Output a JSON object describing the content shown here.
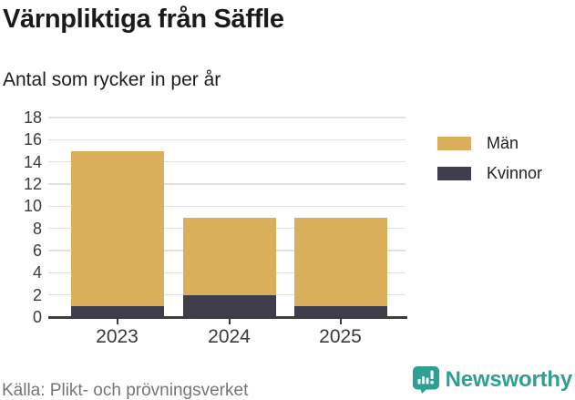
{
  "header": {
    "title": "Värnpliktiga från Säffle",
    "subtitle": "Antal som rycker in per år"
  },
  "legend": {
    "items": [
      {
        "label": "Män",
        "color": "#D9AF5B"
      },
      {
        "label": "Kvinnor",
        "color": "#403E4C"
      }
    ]
  },
  "chart_data": {
    "type": "bar",
    "stacked": true,
    "categories": [
      "2023",
      "2024",
      "2025"
    ],
    "series": [
      {
        "name": "Män",
        "color": "#D9AF5B",
        "values": [
          14,
          7,
          8
        ]
      },
      {
        "name": "Kvinnor",
        "color": "#403E4C",
        "values": [
          1,
          2,
          1
        ]
      }
    ],
    "stack_order_bottom_to_top": [
      "Kvinnor",
      "Män"
    ],
    "totals": [
      15,
      9,
      9
    ],
    "title": "Värnpliktiga från Säffle",
    "subtitle": "Antal som rycker in per år",
    "xlabel": "",
    "ylabel": "",
    "ylim": [
      0,
      18
    ],
    "yticks": [
      0,
      2,
      4,
      6,
      8,
      10,
      12,
      14,
      16,
      18
    ],
    "grid": true,
    "legend_position": "right"
  },
  "colors": {
    "grid": "#e1e1e1",
    "axis": "#3d3d3d",
    "tick_label": "#3c3c3c",
    "brand_teal": "#2f9e93"
  },
  "footer": {
    "source": "Källa: Plikt- och prövningsverket",
    "brand": "Newsworthy"
  }
}
